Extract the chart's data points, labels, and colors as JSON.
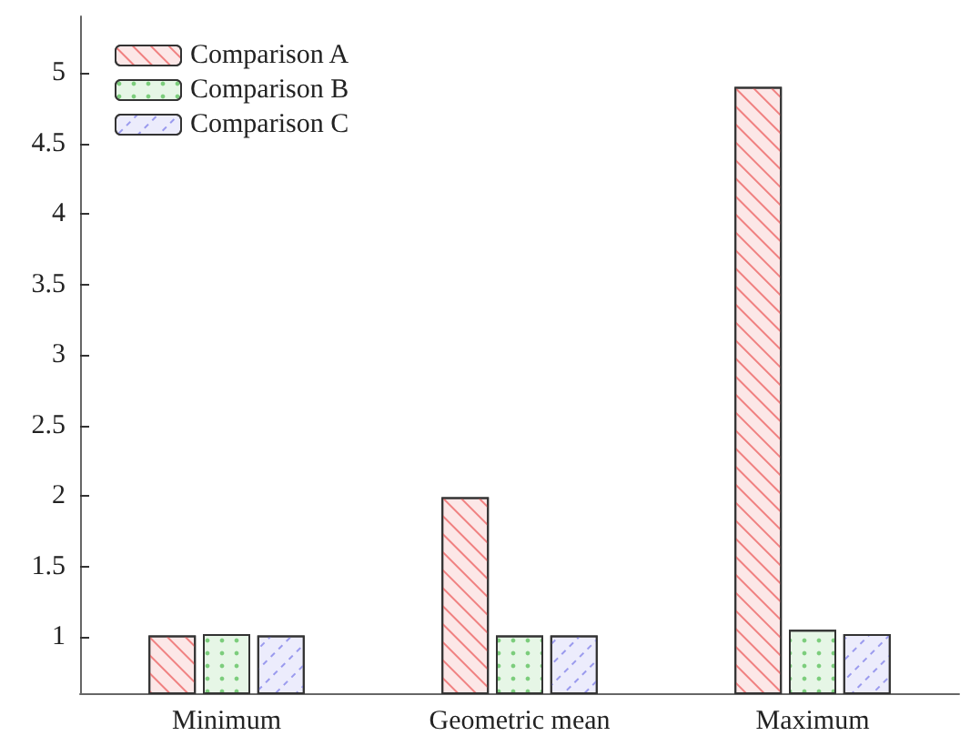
{
  "chart_data": {
    "type": "bar",
    "categories": [
      "Minimum",
      "Geometric mean",
      "Maximum"
    ],
    "series": [
      {
        "name": "Comparison A",
        "color": "#f08080",
        "values": [
          1.01,
          1.99,
          4.9
        ]
      },
      {
        "name": "Comparison B",
        "color": "#7ccd7c",
        "values": [
          1.02,
          1.01,
          1.05
        ]
      },
      {
        "name": "Comparison C",
        "color": "#9a9aee",
        "values": [
          1.01,
          1.01,
          1.02
        ]
      }
    ],
    "ylim": [
      0.6,
      5.4
    ],
    "yticks": [
      1,
      1.5,
      2,
      2.5,
      3,
      3.5,
      4,
      4.5,
      5
    ],
    "grid": false,
    "legend": "top left"
  }
}
